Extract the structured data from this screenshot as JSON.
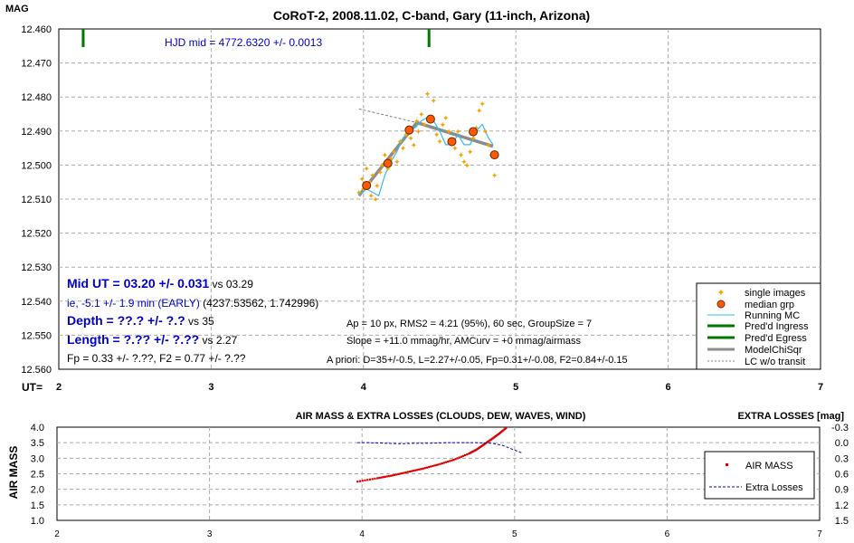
{
  "colors": {
    "single": "#f5a300",
    "median": "#ff5a00",
    "running": "#33bbee",
    "ingress": "#007700",
    "model": "#8c8c8c",
    "lcwo": "#808080",
    "airmass": "#dd0000",
    "extra": "#0000aa",
    "blue_text": "#0000cc"
  },
  "top": {
    "title": "CoRoT-2, 2008.11.02, C-band, Gary (11-inch, Arizona)",
    "y_axis_label": "MAG",
    "x_axis_prefix": "UT=",
    "y_ticks": [
      "12.460",
      "12.470",
      "12.480",
      "12.490",
      "12.500",
      "12.510",
      "12.520",
      "12.530",
      "12.540",
      "12.550",
      "12.560"
    ],
    "x_ticks": [
      "2",
      "3",
      "4",
      "5",
      "6",
      "7"
    ],
    "hjd_label": "HJD mid = 4772.6320 +/- 0.0013",
    "mid_ut_bold": "Mid UT = 03.20 +/- 0.031",
    "mid_ut_vs": " vs 03.29",
    "ie_line": " ie, -5.1 +/- 1.9 min (EARLY)",
    "ie_extra": " (4237.53562, 1.742996)",
    "depth_bold": "Depth = ??.? +/- ?.?",
    "depth_vs": " vs 35",
    "length_bold": "Length = ?.?? +/- ?.??",
    "length_vs": " vs 2.27",
    "fp_line": "Fp = 0.33 +/- ?.??, F2 = 0.77 +/- ?.??",
    "info1": "Ap = 10 px, RMS2 = 4.21 (95%), 60 sec, GroupSize = 7",
    "info2": "Slope = +11.0 mmag/hr, AMCurv = +0 mmag/airmass",
    "info3": "A priori: D=35+/-0.5, L=2.27+/-0.05, Fp=0.31+/-0.08, F2=0.84+/-0.15",
    "legend": [
      "single images",
      "median grp",
      "Running MC",
      "Pred'd Ingress",
      "Pred'd Egress",
      "ModelChiSqr",
      "LC w/o transit"
    ]
  },
  "bottom": {
    "title": "AIR MASS & EXTRA LOSSES (CLOUDS, DEW, WAVES, WIND)",
    "right_title": "EXTRA LOSSES [mag]",
    "y_axis_label": "AIR MASS",
    "y_ticks": [
      "4.0",
      "3.5",
      "3.0",
      "2.5",
      "2.0",
      "1.5",
      "1.0"
    ],
    "y2_ticks": [
      "-0.3",
      "0.0",
      "0.3",
      "0.6",
      "0.9",
      "1.2",
      "1.5"
    ],
    "x_ticks": [
      "2",
      "3",
      "4",
      "5",
      "6",
      "7"
    ],
    "legend": [
      "AIR MASS",
      "Extra Losses"
    ]
  },
  "chart_data": [
    {
      "type": "scatter",
      "title": "CoRoT-2, 2008.11.02, C-band, Gary (11-inch, Arizona)",
      "xlabel": "UT=",
      "ylabel": "MAG",
      "xlim": [
        2,
        7
      ],
      "ylim": [
        12.56,
        12.46
      ],
      "y_inverted": true,
      "grid": true,
      "legend_position": "bottom-right",
      "series": [
        {
          "name": "single images",
          "style": "points",
          "x": [
            3.97,
            3.99,
            4.0,
            4.02,
            4.04,
            4.05,
            4.06,
            4.08,
            4.09,
            4.11,
            4.12,
            4.14,
            4.16,
            4.18,
            4.2,
            4.22,
            4.24,
            4.26,
            4.28,
            4.3,
            4.31,
            4.33,
            4.35,
            4.36,
            4.38,
            4.4,
            4.42,
            4.44,
            4.46,
            4.48,
            4.5,
            4.52,
            4.54,
            4.56,
            4.58,
            4.6,
            4.62,
            4.64,
            4.66,
            4.68,
            4.7,
            4.72,
            4.74,
            4.76,
            4.78,
            4.8,
            4.82,
            4.84,
            4.86
          ],
          "y": [
            12.508,
            12.504,
            12.507,
            12.501,
            12.505,
            12.509,
            12.503,
            12.51,
            12.506,
            12.502,
            12.5,
            12.497,
            12.501,
            12.498,
            12.496,
            12.499,
            12.493,
            12.495,
            12.491,
            12.489,
            12.492,
            12.494,
            12.487,
            12.49,
            12.485,
            12.488,
            12.479,
            12.486,
            12.481,
            12.491,
            12.493,
            12.488,
            12.486,
            12.49,
            12.493,
            12.495,
            12.49,
            12.497,
            12.499,
            12.5,
            12.496,
            12.492,
            12.489,
            12.484,
            12.482,
            12.49,
            12.494,
            12.497,
            12.503
          ]
        },
        {
          "name": "median grp",
          "style": "markers",
          "x": [
            4.02,
            4.16,
            4.3,
            4.44,
            4.58,
            4.72,
            4.86
          ],
          "y": [
            12.506,
            12.4995,
            12.4897,
            12.4865,
            12.4931,
            12.4902,
            12.497
          ]
        },
        {
          "name": "Running MC",
          "style": "line",
          "x": [
            3.97,
            4.02,
            4.06,
            4.1,
            4.14,
            4.18,
            4.22,
            4.26,
            4.3,
            4.34,
            4.38,
            4.42,
            4.46,
            4.5,
            4.54,
            4.58,
            4.62,
            4.66,
            4.7,
            4.74,
            4.78,
            4.82,
            4.85
          ],
          "y": [
            12.509,
            12.507,
            12.508,
            12.509,
            12.503,
            12.499,
            12.496,
            12.492,
            12.49,
            12.489,
            12.487,
            12.486,
            12.487,
            12.49,
            12.494,
            12.494,
            12.491,
            12.494,
            12.494,
            12.49,
            12.488,
            12.492,
            12.494
          ]
        },
        {
          "name": "ModelChiSqr",
          "style": "thick-line",
          "x": [
            3.97,
            4.35,
            4.85
          ],
          "y": [
            12.509,
            12.4875,
            12.4945
          ]
        },
        {
          "name": "LC w/o transit",
          "style": "dashed",
          "x": [
            3.97,
            4.35
          ],
          "y": [
            12.4835,
            12.4875
          ]
        },
        {
          "name": "Pred'd Ingress",
          "style": "tick-top",
          "x": [
            2.16
          ]
        },
        {
          "name": "Pred'd Egress",
          "style": "tick-top",
          "x": [
            4.43
          ]
        }
      ]
    },
    {
      "type": "line",
      "title": "AIR MASS & EXTRA LOSSES (CLOUDS, DEW, WAVES, WIND)",
      "ylabel": "AIR MASS",
      "y2label": "EXTRA LOSSES [mag]",
      "xlim": [
        2,
        7
      ],
      "ylim": [
        1.0,
        4.0
      ],
      "y2lim": [
        1.5,
        -0.3
      ],
      "grid": true,
      "legend_position": "right",
      "series": [
        {
          "name": "AIR MASS",
          "axis": "left",
          "style": "dotted",
          "x": [
            3.97,
            4.1,
            4.2,
            4.3,
            4.4,
            4.5,
            4.6,
            4.7,
            4.75,
            4.8,
            4.85,
            4.9,
            4.95
          ],
          "y": [
            2.25,
            2.36,
            2.45,
            2.56,
            2.67,
            2.8,
            2.95,
            3.15,
            3.28,
            3.45,
            3.62,
            3.8,
            4.0
          ]
        },
        {
          "name": "Extra Losses",
          "axis": "right",
          "style": "dashed",
          "x": [
            3.97,
            4.05,
            4.15,
            4.25,
            4.35,
            4.45,
            4.55,
            4.65,
            4.75,
            4.85,
            4.92,
            4.98,
            5.05
          ],
          "y": [
            0.0,
            0.0,
            0.01,
            0.02,
            0.01,
            0.01,
            0.0,
            0.0,
            0.0,
            0.01,
            0.05,
            0.12,
            0.2
          ]
        }
      ]
    }
  ]
}
